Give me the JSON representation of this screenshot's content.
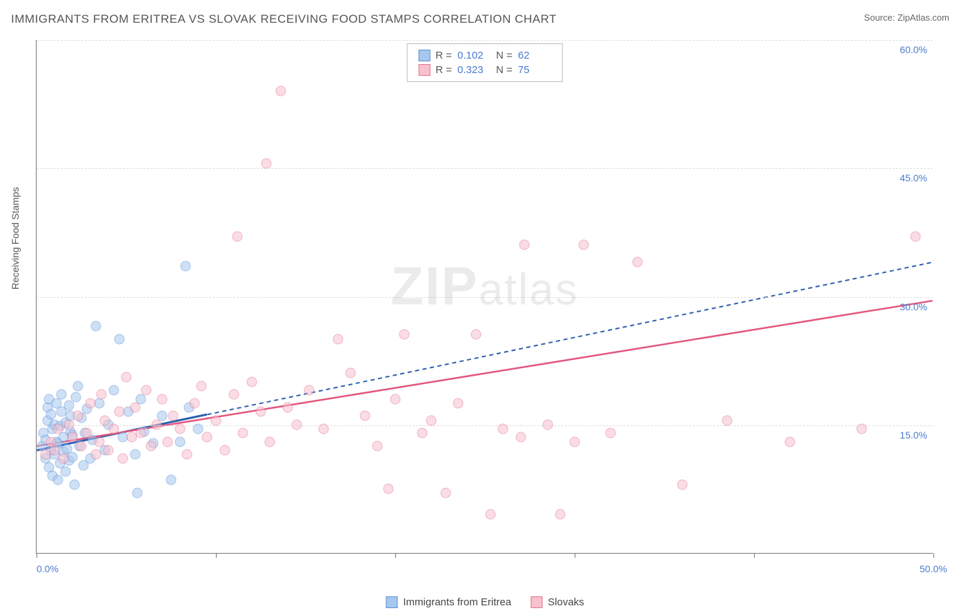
{
  "title": "IMMIGRANTS FROM ERITREA VS SLOVAK RECEIVING FOOD STAMPS CORRELATION CHART",
  "source_label": "Source:",
  "source_name": "ZipAtlas.com",
  "watermark": "ZIPatlas",
  "y_axis_title": "Receiving Food Stamps",
  "chart": {
    "type": "scatter",
    "background_color": "#ffffff",
    "grid_color": "#dddddd",
    "axis_color": "#777777",
    "xlim": [
      0,
      50
    ],
    "ylim": [
      0,
      60
    ],
    "x_ticks": [
      0,
      10,
      20,
      30,
      40,
      50
    ],
    "x_tick_labels": [
      "0.0%",
      "",
      "",
      "",
      "",
      "50.0%"
    ],
    "y_ticks": [
      15,
      30,
      45,
      60
    ],
    "y_tick_labels": [
      "15.0%",
      "30.0%",
      "45.0%",
      "60.0%"
    ],
    "marker_radius": 7.5,
    "marker_opacity": 0.55,
    "series": [
      {
        "name": "Immigrants from Eritrea",
        "key": "eritrea",
        "fill_color": "#a7c7ee",
        "stroke_color": "#5a8fd6",
        "line_color": "#2b5fb0",
        "line_dash": "6,5",
        "line_width": 2,
        "R": "0.102",
        "N": "62",
        "trend": {
          "x1": 0,
          "y1": 12.0,
          "x2": 50,
          "y2": 34.0
        },
        "solid_segment": {
          "x1": 0,
          "y1": 12.0,
          "x2": 9.5,
          "y2": 16.2
        },
        "points": [
          [
            0.3,
            12.5
          ],
          [
            0.4,
            14.0
          ],
          [
            0.5,
            11.0
          ],
          [
            0.5,
            13.2
          ],
          [
            0.6,
            15.5
          ],
          [
            0.6,
            17.0
          ],
          [
            0.7,
            10.0
          ],
          [
            0.7,
            18.0
          ],
          [
            0.8,
            12.0
          ],
          [
            0.8,
            16.2
          ],
          [
            0.9,
            9.0
          ],
          [
            0.9,
            14.5
          ],
          [
            1.0,
            11.5
          ],
          [
            1.0,
            15.0
          ],
          [
            1.1,
            13.0
          ],
          [
            1.1,
            17.5
          ],
          [
            1.2,
            8.5
          ],
          [
            1.2,
            12.8
          ],
          [
            1.3,
            14.8
          ],
          [
            1.3,
            10.5
          ],
          [
            1.4,
            16.5
          ],
          [
            1.4,
            18.5
          ],
          [
            1.5,
            11.8
          ],
          [
            1.5,
            13.5
          ],
          [
            1.6,
            9.5
          ],
          [
            1.6,
            15.2
          ],
          [
            1.7,
            12.2
          ],
          [
            1.8,
            17.2
          ],
          [
            1.8,
            10.8
          ],
          [
            1.9,
            14.2
          ],
          [
            1.9,
            16.0
          ],
          [
            2.0,
            11.2
          ],
          [
            2.0,
            13.8
          ],
          [
            2.1,
            8.0
          ],
          [
            2.2,
            18.2
          ],
          [
            2.3,
            19.5
          ],
          [
            2.4,
            12.5
          ],
          [
            2.5,
            15.8
          ],
          [
            2.6,
            10.2
          ],
          [
            2.7,
            14.0
          ],
          [
            2.8,
            16.8
          ],
          [
            3.0,
            11.0
          ],
          [
            3.1,
            13.2
          ],
          [
            3.3,
            26.5
          ],
          [
            3.5,
            17.5
          ],
          [
            3.8,
            12.0
          ],
          [
            4.0,
            15.0
          ],
          [
            4.3,
            19.0
          ],
          [
            4.6,
            25.0
          ],
          [
            4.8,
            13.5
          ],
          [
            5.1,
            16.5
          ],
          [
            5.5,
            11.5
          ],
          [
            5.6,
            7.0
          ],
          [
            5.8,
            18.0
          ],
          [
            6.0,
            14.2
          ],
          [
            6.5,
            12.8
          ],
          [
            7.0,
            16.0
          ],
          [
            7.5,
            8.5
          ],
          [
            8.0,
            13.0
          ],
          [
            8.3,
            33.5
          ],
          [
            8.5,
            17.0
          ],
          [
            9.0,
            14.5
          ]
        ]
      },
      {
        "name": "Slovaks",
        "key": "slovaks",
        "fill_color": "#f7c2ce",
        "stroke_color": "#e66f8f",
        "line_color": "#e3567e",
        "line_dash": "none",
        "line_width": 2.5,
        "R": "0.323",
        "N": "75",
        "trend": {
          "x1": 0,
          "y1": 12.5,
          "x2": 50,
          "y2": 29.5
        },
        "points": [
          [
            0.5,
            11.5
          ],
          [
            0.8,
            13.0
          ],
          [
            1.0,
            12.0
          ],
          [
            1.2,
            14.5
          ],
          [
            1.5,
            11.0
          ],
          [
            1.8,
            15.0
          ],
          [
            2.0,
            13.5
          ],
          [
            2.3,
            16.0
          ],
          [
            2.5,
            12.5
          ],
          [
            2.8,
            14.0
          ],
          [
            3.0,
            17.5
          ],
          [
            3.3,
            11.5
          ],
          [
            3.5,
            13.0
          ],
          [
            3.6,
            18.5
          ],
          [
            3.8,
            15.5
          ],
          [
            4.0,
            12.0
          ],
          [
            4.3,
            14.5
          ],
          [
            4.6,
            16.5
          ],
          [
            4.8,
            11.0
          ],
          [
            5.0,
            20.5
          ],
          [
            5.3,
            13.5
          ],
          [
            5.5,
            17.0
          ],
          [
            5.8,
            14.0
          ],
          [
            6.1,
            19.0
          ],
          [
            6.4,
            12.5
          ],
          [
            6.7,
            15.0
          ],
          [
            7.0,
            18.0
          ],
          [
            7.3,
            13.0
          ],
          [
            7.6,
            16.0
          ],
          [
            8.0,
            14.5
          ],
          [
            8.4,
            11.5
          ],
          [
            8.8,
            17.5
          ],
          [
            9.2,
            19.5
          ],
          [
            9.5,
            13.5
          ],
          [
            10.0,
            15.5
          ],
          [
            10.5,
            12.0
          ],
          [
            11.0,
            18.5
          ],
          [
            11.2,
            37.0
          ],
          [
            11.5,
            14.0
          ],
          [
            12.0,
            20.0
          ],
          [
            12.5,
            16.5
          ],
          [
            12.8,
            45.5
          ],
          [
            13.0,
            13.0
          ],
          [
            13.6,
            54.0
          ],
          [
            14.0,
            17.0
          ],
          [
            14.5,
            15.0
          ],
          [
            15.2,
            19.0
          ],
          [
            16.0,
            14.5
          ],
          [
            16.8,
            25.0
          ],
          [
            17.5,
            21.0
          ],
          [
            18.3,
            16.0
          ],
          [
            19.0,
            12.5
          ],
          [
            19.6,
            7.5
          ],
          [
            20.0,
            18.0
          ],
          [
            20.5,
            25.5
          ],
          [
            21.5,
            14.0
          ],
          [
            22.0,
            15.5
          ],
          [
            22.8,
            7.0
          ],
          [
            23.5,
            17.5
          ],
          [
            24.5,
            25.5
          ],
          [
            25.3,
            4.5
          ],
          [
            26.0,
            14.5
          ],
          [
            27.0,
            13.5
          ],
          [
            27.2,
            36.0
          ],
          [
            28.5,
            15.0
          ],
          [
            29.2,
            4.5
          ],
          [
            30.0,
            13.0
          ],
          [
            30.5,
            36.0
          ],
          [
            32.0,
            14.0
          ],
          [
            33.5,
            34.0
          ],
          [
            36.0,
            8.0
          ],
          [
            38.5,
            15.5
          ],
          [
            42.0,
            13.0
          ],
          [
            46.0,
            14.5
          ],
          [
            49.0,
            37.0
          ]
        ]
      }
    ]
  },
  "legend_bottom": [
    {
      "label": "Immigrants from Eritrea",
      "series": "eritrea"
    },
    {
      "label": "Slovaks",
      "series": "slovaks"
    }
  ]
}
